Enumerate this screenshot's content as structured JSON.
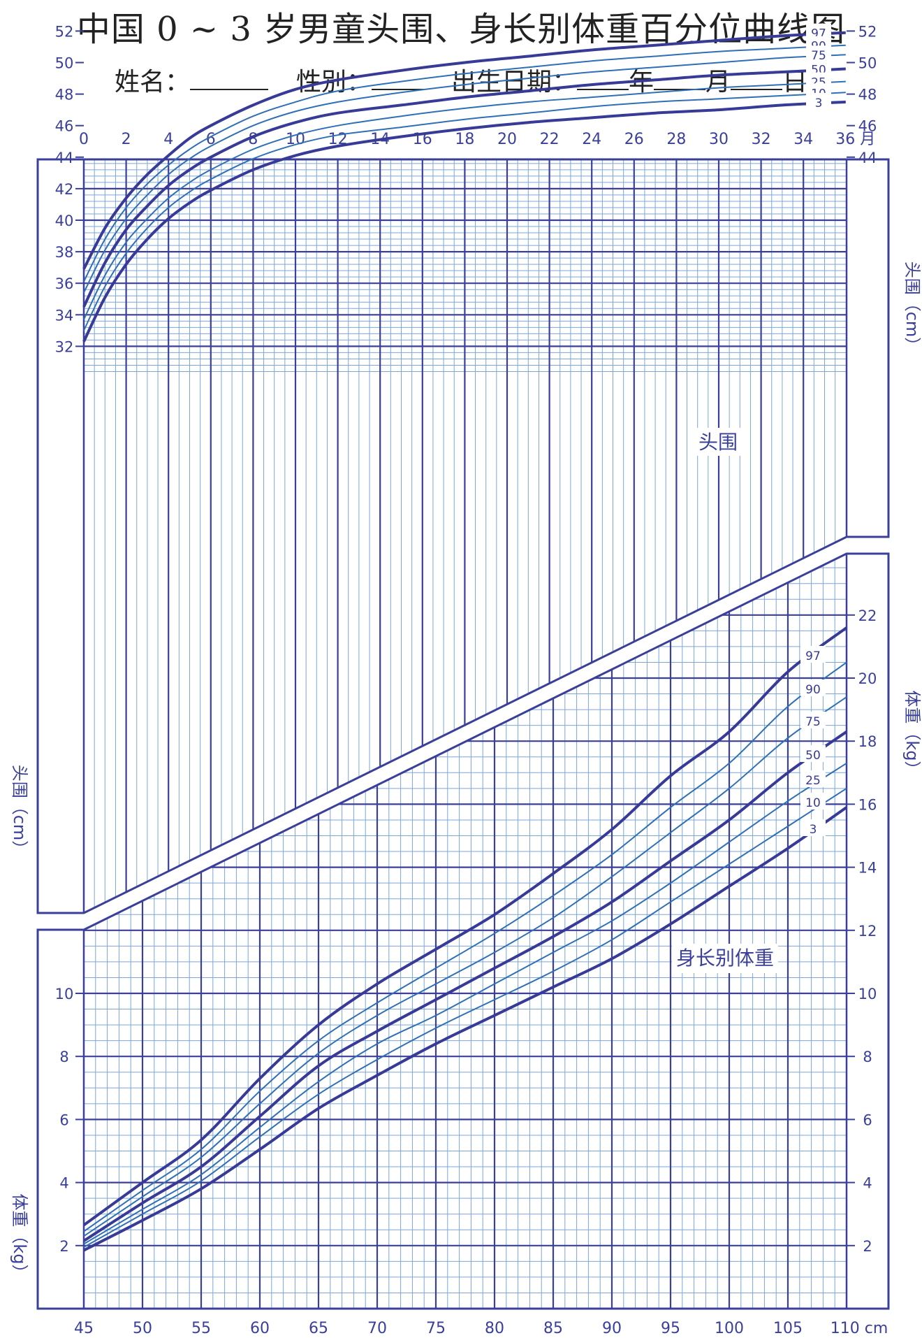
{
  "title": "中国 0 ~ 3 岁男童头围、身长别体重百分位曲线图",
  "form": {
    "name_label": "姓名：",
    "sex_label": "性别：",
    "birth_label": "出生日期：",
    "year": "年",
    "month": "月",
    "day": "日"
  },
  "colors": {
    "frame": "#3a3f9a",
    "minor_grid": "#7ba6d8",
    "thin_curve": "#2f6fb5",
    "thick_curve": "#373a96",
    "text": "#3a3f9a"
  },
  "chart_data": [
    {
      "type": "line",
      "title": "头围",
      "xlabel": "月",
      "ylabel": "头围（cm）",
      "xlim": [
        0,
        36
      ],
      "ylim": [
        30,
        54
      ],
      "x_ticks": [
        "0",
        "2",
        "4",
        "6",
        "8",
        "10",
        "12",
        "14",
        "16",
        "18",
        "20",
        "22",
        "24",
        "26",
        "28",
        "30",
        "32",
        "34",
        "36 月"
      ],
      "y_ticks": [
        "32",
        "34",
        "36",
        "38",
        "40",
        "42",
        "44",
        "46",
        "48",
        "50",
        "52"
      ],
      "y_ticks_right": [
        "44",
        "46",
        "48",
        "50",
        "52"
      ],
      "x": [
        0,
        1,
        2,
        3,
        4,
        5,
        6,
        8,
        10,
        12,
        15,
        18,
        21,
        24,
        27,
        30,
        33,
        36
      ],
      "series": [
        {
          "name": "97",
          "values": [
            36.9,
            39.5,
            41.4,
            42.9,
            44.1,
            45.2,
            46.0,
            47.3,
            48.3,
            48.9,
            49.5,
            50.0,
            50.4,
            50.8,
            51.1,
            51.4,
            51.7,
            51.9
          ]
        },
        {
          "name": "90",
          "values": [
            36.1,
            38.8,
            40.8,
            42.3,
            43.5,
            44.5,
            45.3,
            46.6,
            47.5,
            48.2,
            48.8,
            49.3,
            49.7,
            50.1,
            50.4,
            50.7,
            50.9,
            51.1
          ]
        },
        {
          "name": "75",
          "values": [
            35.4,
            38.1,
            40.1,
            41.6,
            42.9,
            43.9,
            44.7,
            46.0,
            46.9,
            47.5,
            48.1,
            48.6,
            49.0,
            49.4,
            49.7,
            50.0,
            50.3,
            50.5
          ]
        },
        {
          "name": "50",
          "values": [
            34.5,
            37.3,
            39.4,
            40.9,
            42.2,
            43.2,
            44.0,
            45.3,
            46.2,
            46.8,
            47.3,
            47.8,
            48.2,
            48.6,
            48.9,
            49.2,
            49.4,
            49.6
          ]
        },
        {
          "name": "25",
          "values": [
            33.7,
            36.5,
            38.6,
            40.1,
            41.4,
            42.4,
            43.2,
            44.5,
            45.4,
            46.0,
            46.6,
            47.1,
            47.5,
            47.8,
            48.1,
            48.4,
            48.6,
            48.8
          ]
        },
        {
          "name": "10",
          "values": [
            33.0,
            35.8,
            37.9,
            39.5,
            40.8,
            41.8,
            42.6,
            43.9,
            44.8,
            45.4,
            45.9,
            46.4,
            46.8,
            47.2,
            47.5,
            47.7,
            47.9,
            48.1
          ]
        },
        {
          "name": "3",
          "values": [
            32.3,
            35.1,
            37.2,
            38.8,
            40.1,
            41.1,
            41.9,
            43.2,
            44.1,
            44.7,
            45.3,
            45.8,
            46.2,
            46.5,
            46.8,
            47.0,
            47.3,
            47.5
          ]
        }
      ],
      "labels": [
        "头围",
        "头围（cm）"
      ]
    },
    {
      "type": "line",
      "title": "身长别体重",
      "xlabel": "cm",
      "ylabel": "体重（kg）",
      "xlim": [
        45,
        110
      ],
      "ylim": [
        0,
        24
      ],
      "x_ticks": [
        "45",
        "50",
        "55",
        "60",
        "65",
        "70",
        "75",
        "80",
        "85",
        "90",
        "95",
        "100",
        "105",
        "110 cm"
      ],
      "y_ticks": [
        "2",
        "4",
        "6",
        "8",
        "10"
      ],
      "y_ticks_right": [
        "2",
        "4",
        "6",
        "8",
        "10",
        "12",
        "14",
        "16",
        "18",
        "20",
        "22"
      ],
      "x": [
        45,
        50,
        55,
        60,
        65,
        70,
        75,
        80,
        85,
        90,
        95,
        100,
        105,
        110
      ],
      "series": [
        {
          "name": "97",
          "values": [
            2.65,
            4.0,
            5.35,
            7.3,
            9.0,
            10.3,
            11.4,
            12.5,
            13.8,
            15.2,
            16.9,
            18.3,
            20.2,
            21.6
          ]
        },
        {
          "name": "90",
          "values": [
            2.45,
            3.75,
            5.05,
            6.9,
            8.5,
            9.7,
            10.8,
            11.9,
            13.1,
            14.4,
            15.9,
            17.3,
            19.1,
            20.5
          ]
        },
        {
          "name": "75",
          "values": [
            2.3,
            3.55,
            4.8,
            6.5,
            8.1,
            9.3,
            10.3,
            11.3,
            12.4,
            13.7,
            15.1,
            16.5,
            18.1,
            19.4
          ]
        },
        {
          "name": "50",
          "values": [
            2.15,
            3.35,
            4.5,
            6.1,
            7.7,
            8.8,
            9.8,
            10.8,
            11.8,
            12.9,
            14.2,
            15.5,
            17.0,
            18.3
          ]
        },
        {
          "name": "25",
          "values": [
            2.05,
            3.15,
            4.25,
            5.75,
            7.2,
            8.4,
            9.3,
            10.3,
            11.3,
            12.3,
            13.5,
            14.8,
            16.1,
            17.3
          ]
        },
        {
          "name": "10",
          "values": [
            1.95,
            3.0,
            4.05,
            5.45,
            6.8,
            7.9,
            8.9,
            9.8,
            10.7,
            11.7,
            12.9,
            14.1,
            15.3,
            16.5
          ]
        },
        {
          "name": "3",
          "values": [
            1.85,
            2.8,
            3.8,
            5.05,
            6.35,
            7.4,
            8.4,
            9.3,
            10.2,
            11.1,
            12.2,
            13.4,
            14.6,
            15.9
          ]
        }
      ],
      "labels": [
        "身长别体重",
        "体重（kg）"
      ]
    }
  ]
}
